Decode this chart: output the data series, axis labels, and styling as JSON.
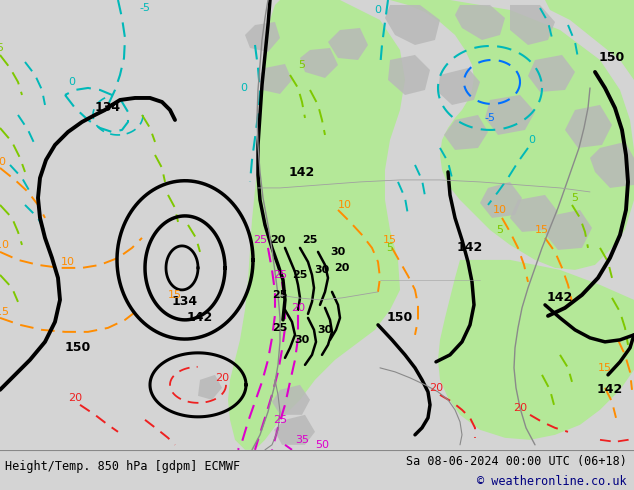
{
  "title_left": "Height/Temp. 850 hPa [gdpm] ECMWF",
  "title_right": "Sa 08-06-2024 00:00 UTC (06+18)",
  "copyright": "© weatheronline.co.uk",
  "bg_color": "#d4d4d4",
  "map_bg_color": "#d4d4d4",
  "green_fill_color": "#b4e898",
  "fig_width": 6.34,
  "fig_height": 4.9,
  "dpi": 100,
  "bottom_bar_color": "#ffffff",
  "title_fontsize": 8.5,
  "copyright_color": "#000080",
  "geop_color": "#000000",
  "cyan_color": "#00b8b8",
  "blue_color": "#0070ff",
  "lime_color": "#7ec800",
  "orange_color": "#ff8c00",
  "red_color": "#ee2020",
  "magenta_color": "#dd00cc"
}
